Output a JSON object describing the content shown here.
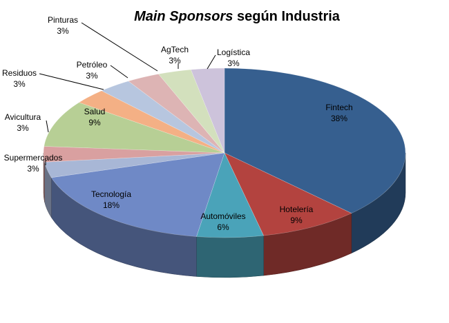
{
  "chart_data": {
    "type": "pie",
    "title_italic": "Main Sponsors",
    "title_rest": " según Industria",
    "categories": [
      "Fintech",
      "Hotelería",
      "Automóviles",
      "Tecnología",
      "Supermercados",
      "Avicultura",
      "Salud",
      "Residuos",
      "Petróleo",
      "Pinturas",
      "AgTech",
      "Logística"
    ],
    "values": [
      38,
      9,
      6,
      18,
      3,
      3,
      9,
      3,
      3,
      3,
      3,
      3
    ],
    "value_labels": [
      "38%",
      "9%",
      "6%",
      "18%",
      "3%",
      "3%",
      "9%",
      "3%",
      "3%",
      "3%",
      "3%",
      "3%"
    ],
    "colors": [
      "#365f8f",
      "#b3433f",
      "#4aa3b9",
      "#6f89c6",
      "#a8b7d6",
      "#d9a0a0",
      "#b7cf95",
      "#f4b085",
      "#b7c6df",
      "#ddb4b4",
      "#d3e0bd",
      "#cdc3db"
    ],
    "legend": "none",
    "style": "3d"
  }
}
